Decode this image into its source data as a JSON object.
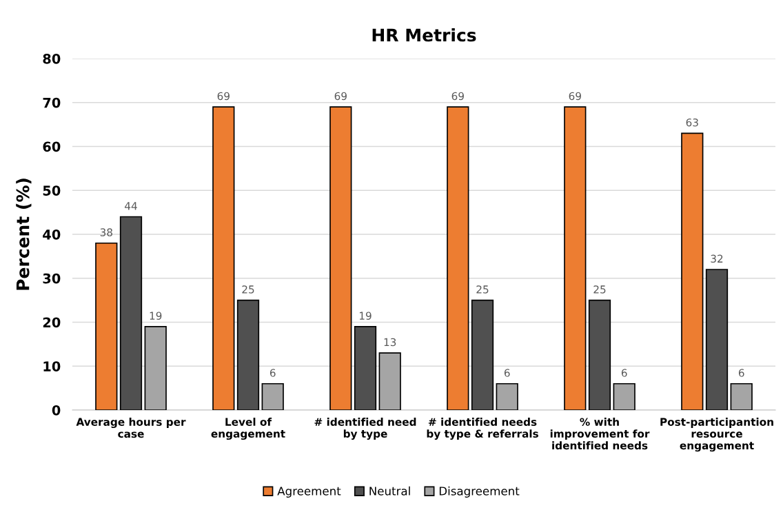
{
  "chart_data": {
    "type": "bar",
    "title": "HR Metrics",
    "ylabel": "Percent (%)",
    "categories": [
      "Average hours per\ncase",
      "Level of\nengagement",
      "# identified need\nby type",
      "# identified needs\nby type & referrals",
      "% with\nimprovement for\nidentified needs",
      "Post-participantion\nresource\nengagement"
    ],
    "series": [
      {
        "name": "Agreement",
        "color": "#ed7d31",
        "values": [
          38,
          69,
          69,
          69,
          69,
          63
        ]
      },
      {
        "name": "Neutral",
        "color": "#505050",
        "values": [
          44,
          25,
          19,
          25,
          25,
          32
        ]
      },
      {
        "name": "Disagreement",
        "color": "#a5a5a5",
        "values": [
          19,
          6,
          13,
          6,
          6,
          6
        ]
      }
    ],
    "ylim": [
      0,
      80
    ],
    "yticks": [
      0,
      10,
      20,
      30,
      40,
      50,
      60,
      70,
      80
    ],
    "grid": "y",
    "legend": "bottom",
    "data_labels": true
  }
}
